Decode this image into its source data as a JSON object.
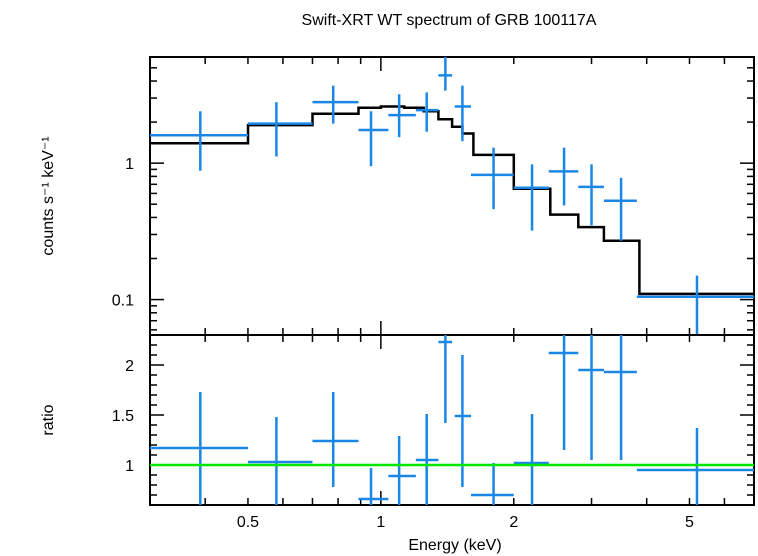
{
  "chart_data": [
    {
      "type": "scatter",
      "panel": "spectrum",
      "title": "Swift-XRT WT spectrum of GRB 100117A",
      "ylabel": "counts s⁻¹ keV⁻¹",
      "xlabel": "",
      "xscale": "log",
      "yscale": "log",
      "xlim": [
        0.3,
        7.0
      ],
      "ylim": [
        0.055,
        6.0
      ],
      "yticks": [
        {
          "v": 0.1,
          "label": "0.1"
        },
        {
          "v": 1,
          "label": "1"
        }
      ],
      "colors": {
        "data": "#1a87e6",
        "model": "#000000"
      },
      "series": [
        {
          "kind": "errorbars",
          "points": [
            {
              "x": 0.39,
              "xlo": 0.3,
              "xhi": 0.5,
              "y": 1.6,
              "ylo": 0.88,
              "yhi": 2.4
            },
            {
              "x": 0.58,
              "xlo": 0.5,
              "xhi": 0.7,
              "y": 1.95,
              "ylo": 1.12,
              "yhi": 2.8
            },
            {
              "x": 0.78,
              "xlo": 0.7,
              "xhi": 0.89,
              "y": 2.8,
              "ylo": 1.95,
              "yhi": 3.7
            },
            {
              "x": 0.95,
              "xlo": 0.89,
              "xhi": 1.04,
              "y": 1.75,
              "ylo": 0.95,
              "yhi": 2.4
            },
            {
              "x": 1.1,
              "xlo": 1.04,
              "xhi": 1.2,
              "y": 2.25,
              "ylo": 1.55,
              "yhi": 3.2
            },
            {
              "x": 1.27,
              "xlo": 1.2,
              "xhi": 1.35,
              "y": 2.45,
              "ylo": 1.7,
              "yhi": 3.3
            },
            {
              "x": 1.4,
              "xlo": 1.35,
              "xhi": 1.45,
              "y": 4.4,
              "ylo": 3.4,
              "yhi": 6.0
            },
            {
              "x": 1.53,
              "xlo": 1.47,
              "xhi": 1.6,
              "y": 2.6,
              "ylo": 1.45,
              "yhi": 3.7
            },
            {
              "x": 1.8,
              "xlo": 1.6,
              "xhi": 2.0,
              "y": 0.82,
              "ylo": 0.46,
              "yhi": 1.3
            },
            {
              "x": 2.2,
              "xlo": 2.0,
              "xhi": 2.4,
              "y": 0.66,
              "ylo": 0.32,
              "yhi": 0.98
            },
            {
              "x": 2.6,
              "xlo": 2.4,
              "xhi": 2.8,
              "y": 0.87,
              "ylo": 0.49,
              "yhi": 1.3
            },
            {
              "x": 3.0,
              "xlo": 2.8,
              "xhi": 3.2,
              "y": 0.67,
              "ylo": 0.35,
              "yhi": 0.98
            },
            {
              "x": 3.5,
              "xlo": 3.2,
              "xhi": 3.8,
              "y": 0.53,
              "ylo": 0.27,
              "yhi": 0.78
            },
            {
              "x": 5.2,
              "xlo": 3.8,
              "xhi": 7.0,
              "y": 0.105,
              "ylo": 0.052,
              "yhi": 0.15
            }
          ]
        },
        {
          "kind": "step",
          "edges": [
            0.3,
            0.5,
            0.7,
            0.89,
            1.0,
            1.13,
            1.25,
            1.35,
            1.45,
            1.53,
            1.62,
            2.0,
            2.42,
            2.8,
            3.2,
            3.85,
            7.0
          ],
          "values": [
            1.4,
            1.9,
            2.3,
            2.55,
            2.6,
            2.55,
            2.4,
            2.1,
            1.85,
            1.65,
            1.15,
            0.65,
            0.42,
            0.34,
            0.27,
            0.11
          ]
        }
      ]
    },
    {
      "type": "scatter",
      "panel": "ratio",
      "title": "",
      "ylabel": "ratio",
      "xlabel": "Energy (keV)",
      "xscale": "log",
      "yscale": "linear",
      "xlim": [
        0.3,
        7.0
      ],
      "ylim": [
        0.6,
        2.3
      ],
      "xticks": [
        {
          "v": 0.5,
          "label": "0.5"
        },
        {
          "v": 1,
          "label": "1"
        },
        {
          "v": 2,
          "label": "2"
        },
        {
          "v": 5,
          "label": "5"
        }
      ],
      "yticks": [
        {
          "v": 1,
          "label": "1"
        },
        {
          "v": 1.5,
          "label": "1.5"
        },
        {
          "v": 2,
          "label": "2"
        }
      ],
      "reference_line": 1,
      "colors": {
        "data": "#1a87e6",
        "reference": "#00e600"
      },
      "series": [
        {
          "kind": "errorbars",
          "points": [
            {
              "x": 0.39,
              "xlo": 0.3,
              "xhi": 0.5,
              "y": 1.17,
              "ylo": 0.6,
              "yhi": 1.73
            },
            {
              "x": 0.58,
              "xlo": 0.5,
              "xhi": 0.7,
              "y": 1.03,
              "ylo": 0.6,
              "yhi": 1.48
            },
            {
              "x": 0.78,
              "xlo": 0.7,
              "xhi": 0.89,
              "y": 1.24,
              "ylo": 0.78,
              "yhi": 1.73
            },
            {
              "x": 0.95,
              "xlo": 0.89,
              "xhi": 1.04,
              "y": 0.66,
              "ylo": 0.6,
              "yhi": 0.97
            },
            {
              "x": 1.1,
              "xlo": 1.04,
              "xhi": 1.2,
              "y": 0.89,
              "ylo": 0.6,
              "yhi": 1.29
            },
            {
              "x": 1.27,
              "xlo": 1.2,
              "xhi": 1.35,
              "y": 1.05,
              "ylo": 0.6,
              "yhi": 1.51
            },
            {
              "x": 1.4,
              "xlo": 1.35,
              "xhi": 1.45,
              "y": 2.23,
              "ylo": 1.42,
              "yhi": 2.3
            },
            {
              "x": 1.53,
              "xlo": 1.47,
              "xhi": 1.6,
              "y": 1.49,
              "ylo": 0.78,
              "yhi": 2.1
            },
            {
              "x": 1.8,
              "xlo": 1.6,
              "xhi": 2.0,
              "y": 0.7,
              "ylo": 0.6,
              "yhi": 1.02
            },
            {
              "x": 2.2,
              "xlo": 2.0,
              "xhi": 2.4,
              "y": 1.02,
              "ylo": 0.6,
              "yhi": 1.51
            },
            {
              "x": 2.6,
              "xlo": 2.4,
              "xhi": 2.8,
              "y": 2.12,
              "ylo": 1.15,
              "yhi": 2.3
            },
            {
              "x": 3.0,
              "xlo": 2.8,
              "xhi": 3.2,
              "y": 1.95,
              "ylo": 1.05,
              "yhi": 2.3
            },
            {
              "x": 3.5,
              "xlo": 3.2,
              "xhi": 3.8,
              "y": 1.93,
              "ylo": 1.05,
              "yhi": 2.3
            },
            {
              "x": 5.2,
              "xlo": 3.8,
              "xhi": 7.0,
              "y": 0.95,
              "ylo": 0.6,
              "yhi": 1.37
            }
          ]
        }
      ]
    }
  ]
}
